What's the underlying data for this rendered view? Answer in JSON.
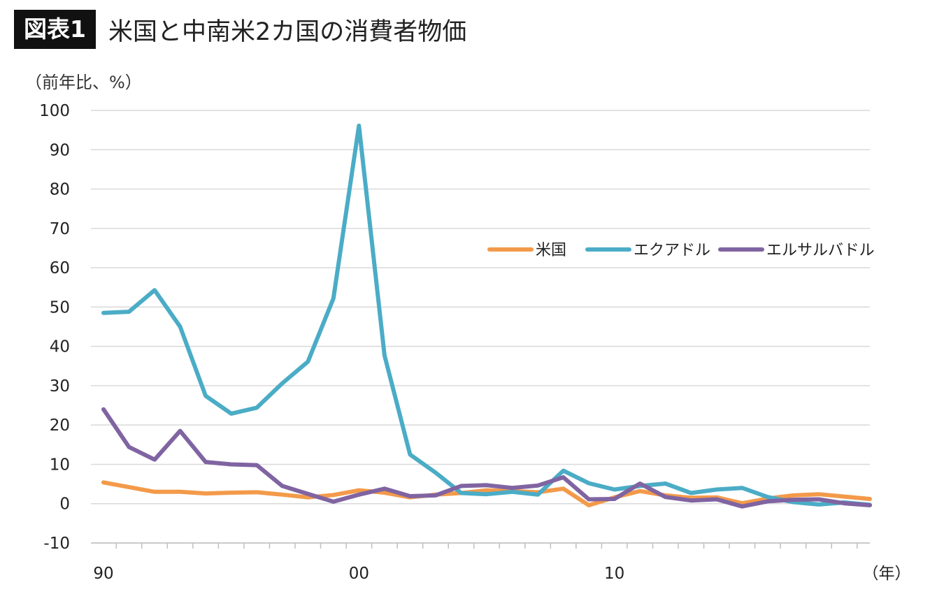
{
  "figure_label": "図表1",
  "title": "米国と中南米2カ国の消費者物価",
  "colors": {
    "us": "#F39A4A",
    "ecuador": "#4BACC6",
    "elsalvador": "#8064A2",
    "grid": "#d9d9d9",
    "axis": "#bfbfbf"
  },
  "chart_data": {
    "type": "line",
    "title": "米国と中南米2カ国の消費者物価",
    "ylabel": "（前年比、%）",
    "xlabel": "（年）",
    "ylim": [
      -10,
      100
    ],
    "yticks": [
      100,
      90,
      80,
      70,
      60,
      50,
      40,
      30,
      20,
      10,
      0,
      -10
    ],
    "x": [
      1990,
      1991,
      1992,
      1993,
      1994,
      1995,
      1996,
      1997,
      1998,
      1999,
      2000,
      2001,
      2002,
      2003,
      2004,
      2005,
      2006,
      2007,
      2008,
      2009,
      2010,
      2011,
      2012,
      2013,
      2014,
      2015,
      2016,
      2017,
      2018,
      2019,
      2020
    ],
    "xticks": [
      {
        "x": 1990,
        "label": "90"
      },
      {
        "x": 2000,
        "label": "00"
      },
      {
        "x": 2010,
        "label": "10"
      }
    ],
    "legend_position": "right",
    "series": [
      {
        "name": "米国",
        "color": "#F39A4A",
        "values": [
          5.4,
          4.2,
          3.0,
          3.0,
          2.6,
          2.8,
          2.9,
          2.3,
          1.6,
          2.2,
          3.4,
          2.8,
          1.6,
          2.3,
          2.7,
          3.4,
          3.2,
          2.9,
          3.8,
          -0.4,
          1.6,
          3.2,
          2.1,
          1.5,
          1.6,
          0.1,
          1.3,
          2.1,
          2.4,
          1.8,
          1.2
        ]
      },
      {
        "name": "エクアドル",
        "color": "#4BACC6",
        "values": [
          48.5,
          48.8,
          54.3,
          45.0,
          27.4,
          22.9,
          24.4,
          30.6,
          36.1,
          52.2,
          96.1,
          37.7,
          12.5,
          7.9,
          2.7,
          2.4,
          3.0,
          2.3,
          8.4,
          5.2,
          3.6,
          4.5,
          5.1,
          2.7,
          3.6,
          4.0,
          1.7,
          0.4,
          -0.2,
          0.3,
          -0.3
        ]
      },
      {
        "name": "エルサルバドル",
        "color": "#8064A2",
        "values": [
          24.0,
          14.4,
          11.2,
          18.5,
          10.6,
          10.0,
          9.8,
          4.5,
          2.5,
          0.5,
          2.3,
          3.8,
          1.9,
          2.1,
          4.5,
          4.7,
          4.0,
          4.6,
          6.7,
          1.1,
          1.2,
          5.1,
          1.7,
          0.8,
          1.1,
          -0.7,
          0.6,
          1.0,
          1.1,
          0.1,
          -0.4
        ]
      }
    ]
  }
}
